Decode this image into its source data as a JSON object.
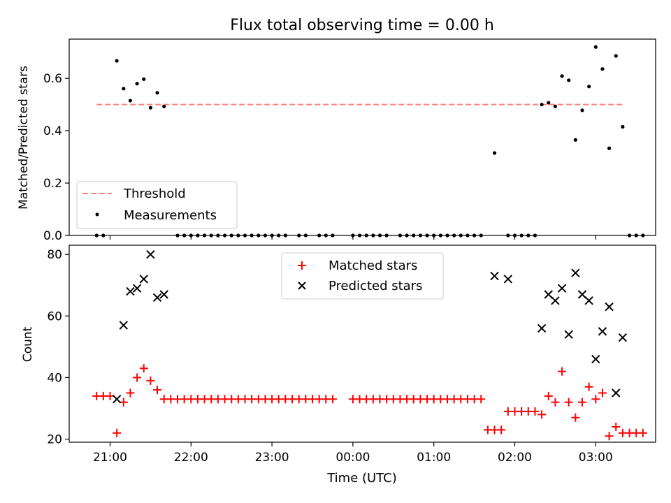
{
  "figure": {
    "title": "Flux total observing time = 0.00 h",
    "xlabel": "Time (UTC)",
    "x_ticks": [
      "21:00",
      "22:00",
      "23:00",
      "00:00",
      "01:00",
      "02:00",
      "03:00"
    ]
  },
  "colors": {
    "threshold": "#ff7f7f",
    "measurements": "#000000",
    "matched": "#ff0000",
    "predicted": "#000000"
  },
  "chart_data": [
    {
      "type": "scatter",
      "ylabel": "Matched/Predicted stars",
      "ylim": [
        0,
        0.75
      ],
      "y_ticks": [
        "0.0",
        "0.2",
        "0.4",
        "0.6"
      ],
      "legend_placement": "lower-left",
      "threshold": {
        "name": "Threshold",
        "value": 0.5,
        "x_range": [
          "20:50",
          "03:20"
        ]
      },
      "series": [
        {
          "name": "Measurements",
          "points": [
            [
              "20:50",
              0
            ],
            [
              "20:55",
              0
            ],
            [
              "21:05",
              0.667
            ],
            [
              "21:10",
              0.561
            ],
            [
              "21:15",
              0.515
            ],
            [
              "21:20",
              0.58
            ],
            [
              "21:25",
              0.597
            ],
            [
              "21:30",
              0.488
            ],
            [
              "21:35",
              0.545
            ],
            [
              "21:40",
              0.493
            ],
            [
              "21:50",
              0
            ],
            [
              "21:55",
              0
            ],
            [
              "22:00",
              0
            ],
            [
              "22:05",
              0
            ],
            [
              "22:10",
              0
            ],
            [
              "22:15",
              0
            ],
            [
              "22:20",
              0
            ],
            [
              "22:25",
              0
            ],
            [
              "22:30",
              0
            ],
            [
              "22:35",
              0
            ],
            [
              "22:40",
              0
            ],
            [
              "22:45",
              0
            ],
            [
              "22:50",
              0
            ],
            [
              "22:55",
              0
            ],
            [
              "23:00",
              0
            ],
            [
              "23:05",
              0
            ],
            [
              "23:10",
              0
            ],
            [
              "23:20",
              0
            ],
            [
              "23:25",
              0
            ],
            [
              "23:35",
              0
            ],
            [
              "23:40",
              0
            ],
            [
              "23:45",
              0
            ],
            [
              "00:00",
              0
            ],
            [
              "00:05",
              0
            ],
            [
              "00:10",
              0
            ],
            [
              "00:15",
              0
            ],
            [
              "00:20",
              0
            ],
            [
              "00:25",
              0
            ],
            [
              "00:35",
              0
            ],
            [
              "00:40",
              0
            ],
            [
              "00:45",
              0
            ],
            [
              "00:50",
              0
            ],
            [
              "00:55",
              0
            ],
            [
              "01:00",
              0
            ],
            [
              "01:05",
              0
            ],
            [
              "01:10",
              0
            ],
            [
              "01:15",
              0
            ],
            [
              "01:20",
              0
            ],
            [
              "01:25",
              0
            ],
            [
              "01:30",
              0
            ],
            [
              "01:35",
              0
            ],
            [
              "01:45",
              0.315
            ],
            [
              "01:55",
              0
            ],
            [
              "02:00",
              0
            ],
            [
              "02:05",
              0
            ],
            [
              "02:10",
              0
            ],
            [
              "02:15",
              0
            ],
            [
              "02:20",
              0.5
            ],
            [
              "02:25",
              0.507
            ],
            [
              "02:30",
              0.493
            ],
            [
              "02:35",
              0.609
            ],
            [
              "02:40",
              0.593
            ],
            [
              "02:45",
              0.365
            ],
            [
              "02:50",
              0.478
            ],
            [
              "02:55",
              0.569
            ],
            [
              "03:00",
              0.72
            ],
            [
              "03:05",
              0.636
            ],
            [
              "03:10",
              0.333
            ],
            [
              "03:15",
              0.686
            ],
            [
              "03:20",
              0.415
            ],
            [
              "03:25",
              0
            ],
            [
              "03:30",
              0
            ],
            [
              "03:35",
              0
            ]
          ]
        }
      ]
    },
    {
      "type": "scatter",
      "ylabel": "Count",
      "ylim": [
        19,
        83
      ],
      "y_ticks": [
        "20",
        "40",
        "60",
        "80"
      ],
      "legend_placement": "upper-center",
      "series": [
        {
          "name": "Matched stars",
          "marker": "+",
          "points": [
            [
              "20:50",
              34
            ],
            [
              "20:55",
              34
            ],
            [
              "21:00",
              34
            ],
            [
              "21:05",
              22
            ],
            [
              "21:10",
              32
            ],
            [
              "21:15",
              35
            ],
            [
              "21:20",
              40
            ],
            [
              "21:25",
              43
            ],
            [
              "21:30",
              39
            ],
            [
              "21:35",
              36
            ],
            [
              "21:40",
              33
            ],
            [
              "21:45",
              33
            ],
            [
              "21:50",
              33
            ],
            [
              "21:55",
              33
            ],
            [
              "22:00",
              33
            ],
            [
              "22:05",
              33
            ],
            [
              "22:10",
              33
            ],
            [
              "22:15",
              33
            ],
            [
              "22:20",
              33
            ],
            [
              "22:25",
              33
            ],
            [
              "22:30",
              33
            ],
            [
              "22:35",
              33
            ],
            [
              "22:40",
              33
            ],
            [
              "22:45",
              33
            ],
            [
              "22:50",
              33
            ],
            [
              "22:55",
              33
            ],
            [
              "23:00",
              33
            ],
            [
              "23:05",
              33
            ],
            [
              "23:10",
              33
            ],
            [
              "23:15",
              33
            ],
            [
              "23:20",
              33
            ],
            [
              "23:25",
              33
            ],
            [
              "23:30",
              33
            ],
            [
              "23:35",
              33
            ],
            [
              "23:40",
              33
            ],
            [
              "23:45",
              33
            ],
            [
              "00:00",
              33
            ],
            [
              "00:05",
              33
            ],
            [
              "00:10",
              33
            ],
            [
              "00:15",
              33
            ],
            [
              "00:20",
              33
            ],
            [
              "00:25",
              33
            ],
            [
              "00:30",
              33
            ],
            [
              "00:35",
              33
            ],
            [
              "00:40",
              33
            ],
            [
              "00:45",
              33
            ],
            [
              "00:50",
              33
            ],
            [
              "00:55",
              33
            ],
            [
              "01:00",
              33
            ],
            [
              "01:05",
              33
            ],
            [
              "01:10",
              33
            ],
            [
              "01:15",
              33
            ],
            [
              "01:20",
              33
            ],
            [
              "01:25",
              33
            ],
            [
              "01:30",
              33
            ],
            [
              "01:35",
              33
            ],
            [
              "01:40",
              23
            ],
            [
              "01:45",
              23
            ],
            [
              "01:50",
              23
            ],
            [
              "01:55",
              29
            ],
            [
              "02:00",
              29
            ],
            [
              "02:05",
              29
            ],
            [
              "02:10",
              29
            ],
            [
              "02:15",
              29
            ],
            [
              "02:20",
              28
            ],
            [
              "02:25",
              34
            ],
            [
              "02:30",
              32
            ],
            [
              "02:35",
              42
            ],
            [
              "02:40",
              32
            ],
            [
              "02:45",
              27
            ],
            [
              "02:50",
              32
            ],
            [
              "02:55",
              37
            ],
            [
              "03:00",
              33
            ],
            [
              "03:05",
              35
            ],
            [
              "03:10",
              21
            ],
            [
              "03:15",
              24
            ],
            [
              "03:20",
              22
            ],
            [
              "03:25",
              22
            ],
            [
              "03:30",
              22
            ],
            [
              "03:35",
              22
            ]
          ]
        },
        {
          "name": "Predicted stars",
          "marker": "x",
          "points": [
            [
              "21:05",
              33
            ],
            [
              "21:10",
              57
            ],
            [
              "21:15",
              68
            ],
            [
              "21:20",
              69
            ],
            [
              "21:25",
              72
            ],
            [
              "21:30",
              80
            ],
            [
              "21:35",
              66
            ],
            [
              "21:40",
              67
            ],
            [
              "01:45",
              73
            ],
            [
              "01:55",
              72
            ],
            [
              "02:20",
              56
            ],
            [
              "02:25",
              67
            ],
            [
              "02:30",
              65
            ],
            [
              "02:35",
              69
            ],
            [
              "02:40",
              54
            ],
            [
              "02:45",
              74
            ],
            [
              "02:50",
              67
            ],
            [
              "02:55",
              65
            ],
            [
              "03:00",
              46
            ],
            [
              "03:05",
              55
            ],
            [
              "03:10",
              63
            ],
            [
              "03:15",
              35
            ],
            [
              "03:20",
              53
            ]
          ]
        }
      ]
    }
  ]
}
